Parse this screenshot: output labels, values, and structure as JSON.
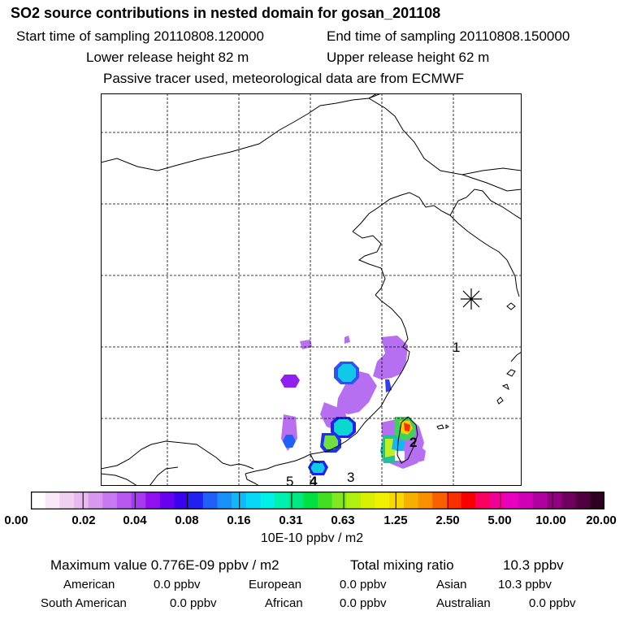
{
  "header": {
    "title": "SO2 source contributions in nested domain for gosan_201108",
    "start_label": "Start time of sampling 20110808.120000",
    "end_label": "End time of sampling 20110808.150000",
    "lower_label": "Lower release height   82 m",
    "upper_label": "Upper release height   62 m",
    "note": "Passive tracer used, meteorological data are from ECMWF"
  },
  "map": {
    "receptor_symbol": "star-marker",
    "region_labels": [
      "1",
      "2",
      "3",
      "4",
      "5"
    ]
  },
  "colorbar": {
    "colors": [
      "#ffffff",
      "#f8e8f8",
      "#f0d0f0",
      "#e8b8f0",
      "#d898f0",
      "#c878f0",
      "#b858f0",
      "#a838f0",
      "#9010f0",
      "#6a00f0",
      "#3a00f0",
      "#2020f0",
      "#2060f8",
      "#1890f8",
      "#10b8f8",
      "#08d8f8",
      "#00f0e8",
      "#00f0b0",
      "#00e880",
      "#00e040",
      "#40e020",
      "#80e820",
      "#b0f010",
      "#d8f000",
      "#f0f000",
      "#f8d800",
      "#f8b000",
      "#f89000",
      "#f86000",
      "#f83000",
      "#f80000",
      "#f80060",
      "#f00098",
      "#e800c0",
      "#d000b8",
      "#b000a0",
      "#900080",
      "#700060",
      "#500040",
      "#300020"
    ],
    "tick_labels": [
      "0.00",
      "0.02",
      "0.04",
      "0.08",
      "0.16",
      "0.31",
      "0.63",
      "1.25",
      "2.50",
      "5.00",
      "10.00",
      "20.00"
    ],
    "units": "10E-10 ppbv / m2"
  },
  "footer": {
    "max_value": "Maximum value  0.776E-09 ppbv / m2",
    "total_label": "Total mixing ratio",
    "total_value": "10.3 ppbv",
    "american_label": "American",
    "american_value": "0.0 ppbv",
    "european_label": "European",
    "european_value": "0.0 ppbv",
    "asian_label": "Asian",
    "asian_value": "10.3 ppbv",
    "south_american_label": "South American",
    "south_american_value": "0.0 ppbv",
    "african_label": "African",
    "african_value": "0.0 ppbv",
    "australian_label": "Australian",
    "australian_value": "0.0 ppbv"
  }
}
